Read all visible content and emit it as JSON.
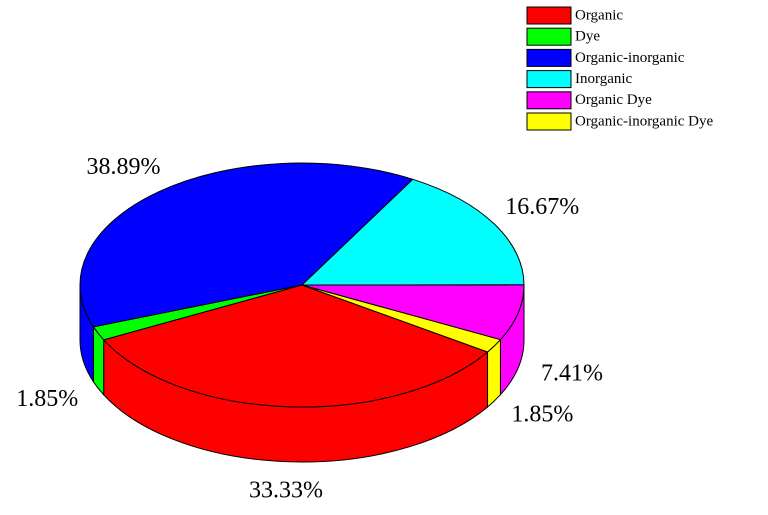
{
  "chart_data": {
    "type": "pie3d",
    "categories": [
      "Organic",
      "Dye",
      "Organic-inorganic",
      "Inorganic",
      "Organic Dye",
      "Organic-inorganic Dye"
    ],
    "values": [
      33.33,
      1.85,
      38.89,
      16.67,
      7.41,
      1.85
    ],
    "value_labels": [
      "33.33%",
      "1.85%",
      "38.89%",
      "16.67%",
      "7.41%",
      "1.85%"
    ],
    "colors": [
      "#ff0000",
      "#00ff00",
      "#0000ff",
      "#00ffff",
      "#ff00ff",
      "#ffff00"
    ],
    "legend": "top-right"
  }
}
